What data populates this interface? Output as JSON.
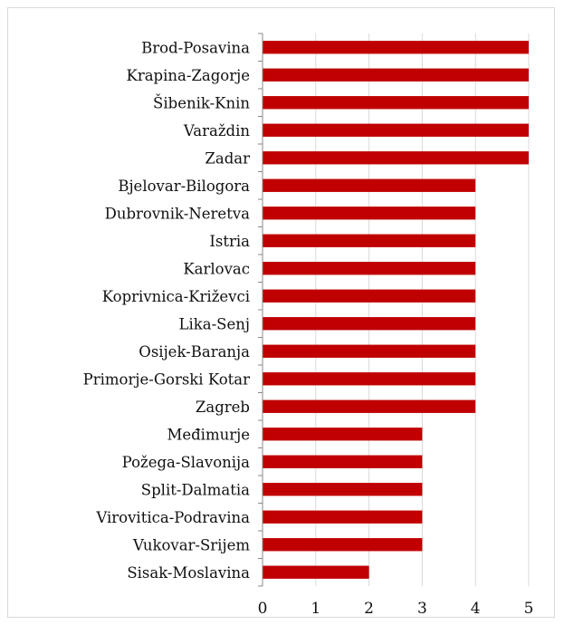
{
  "chart_data": {
    "type": "bar",
    "orientation": "horizontal",
    "categories": [
      "Brod-Posavina",
      "Krapina-Zagorje",
      "Šibenik-Knin",
      "Varaždin",
      "Zadar",
      "Bjelovar-Bilogora",
      "Dubrovnik-Neretva",
      "Istria",
      "Karlovac",
      "Koprivnica-Križevci",
      "Lika-Senj",
      "Osijek-Baranja",
      "Primorje-Gorski Kotar",
      "Zagreb",
      "Međimurje",
      "Požega-Slavonija",
      "Split-Dalmatia",
      "Virovitica-Podravina",
      "Vukovar-Srijem",
      "Sisak-Moslavina"
    ],
    "values": [
      5,
      5,
      5,
      5,
      5,
      4,
      4,
      4,
      4,
      4,
      4,
      4,
      4,
      4,
      3,
      3,
      3,
      3,
      3,
      2
    ],
    "xlim": [
      0,
      5
    ],
    "xticks": [
      "0",
      "1",
      "2",
      "3",
      "4",
      "5"
    ],
    "title": "",
    "xlabel": "",
    "ylabel": "",
    "grid": "vertical gridlines",
    "legend": "none",
    "colors": {
      "bar": "#c00000",
      "grid": "#d9d9d9",
      "axis": "#888888"
    }
  }
}
